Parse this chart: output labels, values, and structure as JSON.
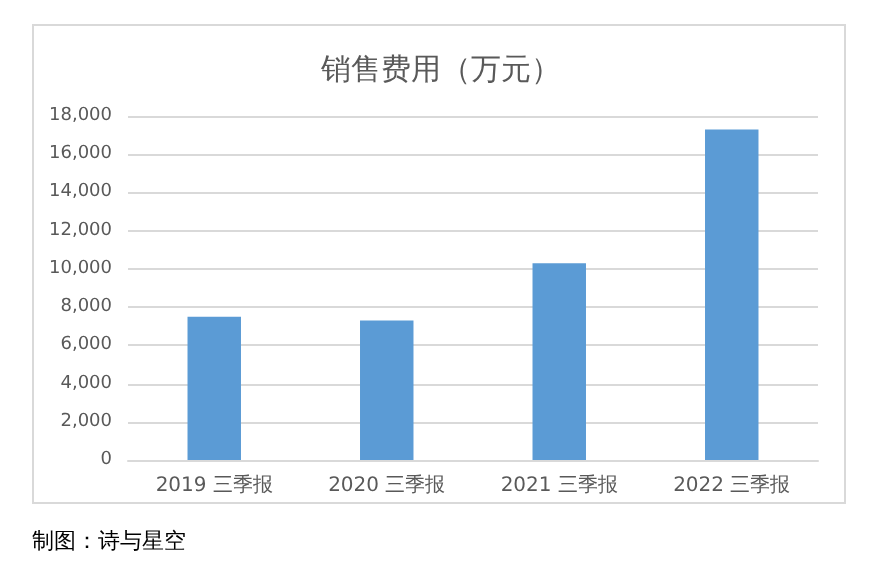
{
  "chart_data": {
    "type": "bar",
    "title": "销售费用（万元）",
    "categories": [
      "2019 三季报",
      "2020 三季报",
      "2021 三季报",
      "2022 三季报"
    ],
    "values": [
      7500,
      7300,
      10300,
      17300
    ],
    "color": "#5b9bd5",
    "ylim": [
      0,
      18000
    ],
    "yticks": [
      {
        "value": 0,
        "label": "0"
      },
      {
        "value": 2000,
        "label": "2,000"
      },
      {
        "value": 4000,
        "label": "4,000"
      },
      {
        "value": 6000,
        "label": "6,000"
      },
      {
        "value": 8000,
        "label": "8,000"
      },
      {
        "value": 10000,
        "label": "10,000"
      },
      {
        "value": 12000,
        "label": "12,000"
      },
      {
        "value": 14000,
        "label": "14,000"
      },
      {
        "value": 16000,
        "label": "16,000"
      },
      {
        "value": 18000,
        "label": "18,000"
      }
    ],
    "grid": "y",
    "annotations": [
      "制图：诗与星空"
    ]
  }
}
